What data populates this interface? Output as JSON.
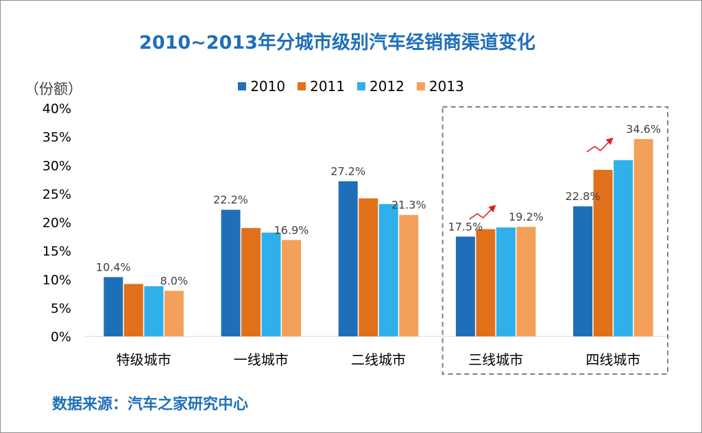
{
  "chart_data": {
    "type": "bar",
    "title": "2010~2013年分城市级别汽车经销商渠道变化",
    "ylabel": "（份额）",
    "xlabel": "",
    "ylim": [
      0,
      40
    ],
    "yticks": [
      "0%",
      "5%",
      "10%",
      "15%",
      "20%",
      "25%",
      "30%",
      "35%",
      "40%"
    ],
    "categories": [
      "特级城市",
      "一线城市",
      "二线城市",
      "三线城市",
      "四线城市"
    ],
    "series": [
      {
        "name": "2010",
        "color": "#1f6fb8",
        "values": [
          10.4,
          22.2,
          27.2,
          17.5,
          22.8
        ]
      },
      {
        "name": "2011",
        "color": "#e1701a",
        "values": [
          9.2,
          19.0,
          24.2,
          18.8,
          29.2
        ]
      },
      {
        "name": "2012",
        "color": "#2fb0ea",
        "values": [
          8.8,
          18.2,
          23.2,
          19.1,
          30.9
        ]
      },
      {
        "name": "2013",
        "color": "#f4a05a",
        "values": [
          8.0,
          16.9,
          21.3,
          19.2,
          34.6
        ]
      }
    ],
    "data_labels": [
      {
        "category": 0,
        "series": 0,
        "text": "10.4%"
      },
      {
        "category": 0,
        "series": 3,
        "text": "8.0%"
      },
      {
        "category": 1,
        "series": 0,
        "text": "22.2%"
      },
      {
        "category": 1,
        "series": 3,
        "text": "16.9%"
      },
      {
        "category": 2,
        "series": 0,
        "text": "27.2%"
      },
      {
        "category": 2,
        "series": 3,
        "text": "21.3%"
      },
      {
        "category": 3,
        "series": 0,
        "text": "17.5%"
      },
      {
        "category": 3,
        "series": 3,
        "text": "19.2%"
      },
      {
        "category": 4,
        "series": 0,
        "text": "22.8%"
      },
      {
        "category": 4,
        "series": 3,
        "text": "34.6%"
      }
    ],
    "highlight_categories": [
      3,
      4
    ],
    "trend_arrow_categories": [
      3,
      4
    ],
    "legend_position": "top-center",
    "grid": false
  },
  "source_note": "数据来源：汽车之家研究中心",
  "colors": {
    "title": "#1f6fb8",
    "arrow": "#e02020",
    "highlight_box": "#7f7f7f"
  }
}
